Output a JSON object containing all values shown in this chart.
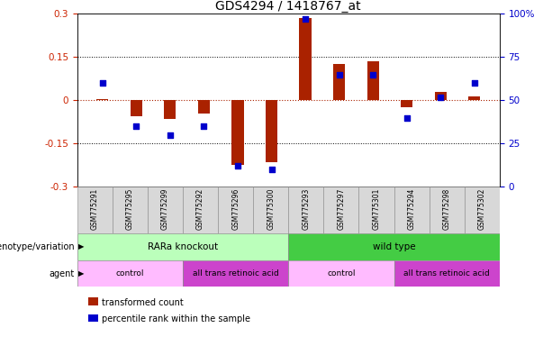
{
  "title": "GDS4294 / 1418767_at",
  "samples": [
    "GSM775291",
    "GSM775295",
    "GSM775299",
    "GSM775292",
    "GSM775296",
    "GSM775300",
    "GSM775293",
    "GSM775297",
    "GSM775301",
    "GSM775294",
    "GSM775298",
    "GSM775302"
  ],
  "bar_values": [
    0.005,
    -0.055,
    -0.065,
    -0.045,
    -0.225,
    -0.215,
    0.285,
    0.125,
    0.135,
    -0.025,
    0.03,
    0.015
  ],
  "dot_values": [
    60,
    35,
    30,
    35,
    12,
    10,
    97,
    65,
    65,
    40,
    52,
    60
  ],
  "ylim_left": [
    -0.3,
    0.3
  ],
  "ylim_right": [
    0,
    100
  ],
  "yticks_left": [
    -0.3,
    -0.15,
    0,
    0.15,
    0.3
  ],
  "yticks_right": [
    0,
    25,
    50,
    75,
    100
  ],
  "ytick_labels_left": [
    "-0.3",
    "-0.15",
    "0",
    "0.15",
    "0.3"
  ],
  "ytick_labels_right": [
    "0",
    "25",
    "50",
    "75",
    "100%"
  ],
  "hlines": [
    0.15,
    -0.15
  ],
  "hline_zero": 0,
  "bar_color": "#aa2200",
  "dot_color": "#0000cc",
  "bar_width": 0.35,
  "genotype_groups": [
    {
      "label": "RARa knockout",
      "start": 0,
      "end": 6,
      "color": "#bbffbb"
    },
    {
      "label": "wild type",
      "start": 6,
      "end": 12,
      "color": "#44cc44"
    }
  ],
  "agent_groups": [
    {
      "label": "control",
      "start": 0,
      "end": 3,
      "color": "#ffbbff"
    },
    {
      "label": "all trans retinoic acid",
      "start": 3,
      "end": 6,
      "color": "#cc44cc"
    },
    {
      "label": "control",
      "start": 6,
      "end": 9,
      "color": "#ffbbff"
    },
    {
      "label": "all trans retinoic acid",
      "start": 9,
      "end": 12,
      "color": "#cc44cc"
    }
  ],
  "legend_items": [
    {
      "label": "transformed count",
      "color": "#aa2200"
    },
    {
      "label": "percentile rank within the sample",
      "color": "#0000cc"
    }
  ],
  "left_label_color": "#cc2200",
  "right_label_color": "#0000cc",
  "title_fontsize": 10,
  "tick_fontsize": 7.5,
  "sample_fontsize": 5.5,
  "annot_fontsize": 7.5,
  "legend_fontsize": 7
}
